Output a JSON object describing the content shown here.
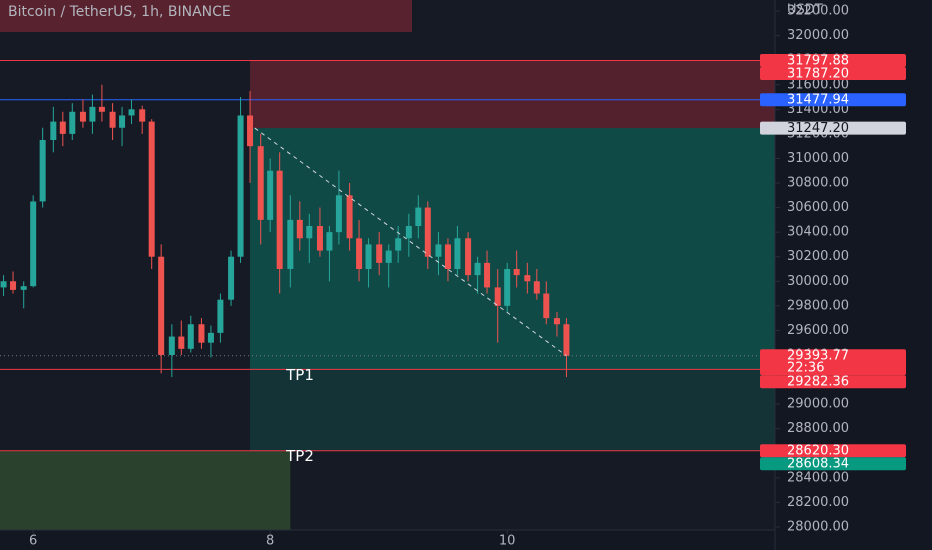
{
  "chart_data": {
    "type": "candlestick",
    "title": "Bitcoin / TetherUS, 1h, BINANCE",
    "y_unit": "USDT",
    "up_color": "#26a69a",
    "down_color": "#ef5350",
    "xlim": [
      5.72,
      12.26
    ],
    "xticks": [
      6,
      8,
      10
    ],
    "ylim": [
      27975,
      32290
    ],
    "yticks": [
      {
        "value": 28000,
        "label": "28000.00"
      },
      {
        "value": 28200,
        "label": "28200.00"
      },
      {
        "value": 28400,
        "label": "28400.00"
      },
      {
        "value": 28600,
        "label": "28600.00"
      },
      {
        "value": 28800,
        "label": "28800.00"
      },
      {
        "value": 29000,
        "label": "29000.00"
      },
      {
        "value": 29200,
        "label": "29200.00"
      },
      {
        "value": 29400,
        "label": "29400.00"
      },
      {
        "value": 29600,
        "label": "29600.00"
      },
      {
        "value": 29800,
        "label": "29800.00"
      },
      {
        "value": 30000,
        "label": "30000.00"
      },
      {
        "value": 30200,
        "label": "30200.00"
      },
      {
        "value": 30400,
        "label": "30400.00"
      },
      {
        "value": 30600,
        "label": "30600.00"
      },
      {
        "value": 30800,
        "label": "30800.00"
      },
      {
        "value": 31000,
        "label": "31000.00"
      },
      {
        "value": 31200,
        "label": "31200.00"
      },
      {
        "value": 31400,
        "label": "31400.00"
      },
      {
        "value": 31600,
        "label": "31600.00"
      },
      {
        "value": 31800,
        "label": "31800.00"
      },
      {
        "value": 32000,
        "label": "32000.00"
      },
      {
        "value": 32200,
        "label": "32200.00"
      }
    ],
    "x": [
      5.75,
      5.83,
      5.92,
      6,
      6.08,
      6.17,
      6.25,
      6.33,
      6.42,
      6.5,
      6.58,
      6.67,
      6.75,
      6.83,
      6.92,
      7,
      7.08,
      7.17,
      7.25,
      7.33,
      7.42,
      7.5,
      7.58,
      7.67,
      7.75,
      7.83,
      7.92,
      8,
      8.08,
      8.17,
      8.25,
      8.33,
      8.42,
      8.5,
      8.58,
      8.67,
      8.75,
      8.83,
      8.92,
      9,
      9.08,
      9.17,
      9.25,
      9.33,
      9.42,
      9.5,
      9.58,
      9.67,
      9.75,
      9.83,
      9.92,
      10,
      10.08,
      10.17,
      10.25,
      10.33,
      10.42,
      10.5
    ],
    "open": [
      29950,
      30000,
      29930,
      29960,
      30650,
      31150,
      31300,
      31200,
      31380,
      31300,
      31420,
      31380,
      31250,
      31350,
      31400,
      31300,
      30200,
      29400,
      29550,
      29450,
      29650,
      29500,
      29580,
      29850,
      30200,
      31350,
      31100,
      30500,
      30900,
      30100,
      30500,
      30350,
      30450,
      30250,
      30400,
      30700,
      30350,
      30100,
      30300,
      30150,
      30250,
      30350,
      30450,
      30600,
      30200,
      30300,
      30100,
      30350,
      30050,
      30150,
      29950,
      29800,
      30100,
      30050,
      30000,
      29900,
      29700,
      29650
    ],
    "high": [
      30050,
      30080,
      30000,
      30700,
      31250,
      31420,
      31380,
      31450,
      31480,
      31520,
      31600,
      31450,
      31420,
      31480,
      31430,
      31320,
      30300,
      29650,
      29680,
      29720,
      29700,
      29640,
      29900,
      30250,
      31500,
      31550,
      31200,
      31000,
      31050,
      30700,
      30650,
      30550,
      30600,
      30450,
      30900,
      30800,
      30500,
      30350,
      30400,
      30300,
      30450,
      30550,
      30700,
      30650,
      30400,
      30350,
      30450,
      30400,
      30200,
      30250,
      30100,
      30150,
      30250,
      30150,
      30100,
      30000,
      29750,
      29700
    ],
    "low": [
      29880,
      29900,
      29780,
      29950,
      30600,
      31050,
      31100,
      31150,
      31250,
      31200,
      31300,
      31150,
      31100,
      31280,
      31200,
      30100,
      29250,
      29220,
      29400,
      29420,
      29450,
      29380,
      29500,
      29800,
      30150,
      30800,
      30300,
      30400,
      29900,
      29950,
      30250,
      30150,
      30200,
      30000,
      30300,
      30250,
      30000,
      29950,
      30050,
      29950,
      30150,
      30200,
      30350,
      30100,
      30050,
      30000,
      30050,
      30000,
      29900,
      29900,
      29500,
      29750,
      29950,
      29900,
      29850,
      29650,
      29550,
      29220
    ],
    "close": [
      30000,
      29930,
      29960,
      30650,
      31150,
      31300,
      31200,
      31380,
      31300,
      31420,
      31380,
      31250,
      31350,
      31400,
      31300,
      30200,
      29400,
      29550,
      29450,
      29650,
      29500,
      29580,
      29850,
      30200,
      31350,
      31100,
      30500,
      30900,
      30100,
      30500,
      30350,
      30450,
      30250,
      30400,
      30700,
      30350,
      30100,
      30300,
      30150,
      30250,
      30350,
      30450,
      30600,
      30200,
      30300,
      30100,
      30350,
      30050,
      30150,
      29950,
      29800,
      30100,
      30050,
      30000,
      29900,
      29700,
      29650,
      29393.77
    ],
    "zones": [
      {
        "from": 31247.2,
        "to": 31797.88,
        "start": 7.83,
        "end": 12.26,
        "color": "rgba(242,54,69,0.28)"
      },
      {
        "from": 29282.36,
        "to": 31247.2,
        "start": 7.83,
        "end": 12.26,
        "color": "rgba(8,153,129,0.38)"
      },
      {
        "from": 28620.3,
        "to": 29282.36,
        "start": 7.83,
        "end": 12.26,
        "color": "rgba(8,153,129,0.2)"
      },
      {
        "from": 27975,
        "to": 28620.3,
        "start": 5.72,
        "end": 8.17,
        "color": "rgba(76,140,60,0.35)"
      }
    ],
    "levels": [
      {
        "value": 31797.88,
        "color": "#f23645"
      },
      {
        "value": 31477.94,
        "color": "#2962ff"
      },
      {
        "value": 29393.77,
        "color": "#787b86",
        "dash": "dotted"
      },
      {
        "value": 29282.36,
        "color": "#f23645",
        "label": "TP1"
      },
      {
        "value": 28620.3,
        "color": "#f23645",
        "label": "TP2"
      }
    ],
    "trendline": {
      "x": [
        7.87,
        10.5
      ],
      "y": [
        31247.2,
        29393.77
      ],
      "color": "#d1d4dc"
    },
    "markers": [
      {
        "value": 31797.88,
        "label": "31797.88",
        "color": "#f23645",
        "text_color": "#ffffff"
      },
      {
        "value": 31787.2,
        "label": "31787.20",
        "color": "#f23645",
        "text_color": "#ffffff"
      },
      {
        "value": 31477.94,
        "label": "31477.94",
        "color": "#2962ff",
        "text_color": "#ffffff"
      },
      {
        "value": 31247.2,
        "label": "31247.20",
        "color": "#d1d4dc",
        "text_color": "#131722"
      },
      {
        "value": 29393.77,
        "label": "29393.77",
        "countdown": "22:36",
        "color": "#f23645",
        "text_color": "#ffffff"
      },
      {
        "value": 29282.36,
        "label": "29282.36",
        "color": "#f23645",
        "text_color": "#ffffff"
      },
      {
        "value": 28620.3,
        "label": "28620.30",
        "color": "#f23645",
        "text_color": "#ffffff"
      },
      {
        "value": 28608.34,
        "label": "28608.34",
        "color": "#089981",
        "text_color": "#ffffff"
      }
    ]
  }
}
